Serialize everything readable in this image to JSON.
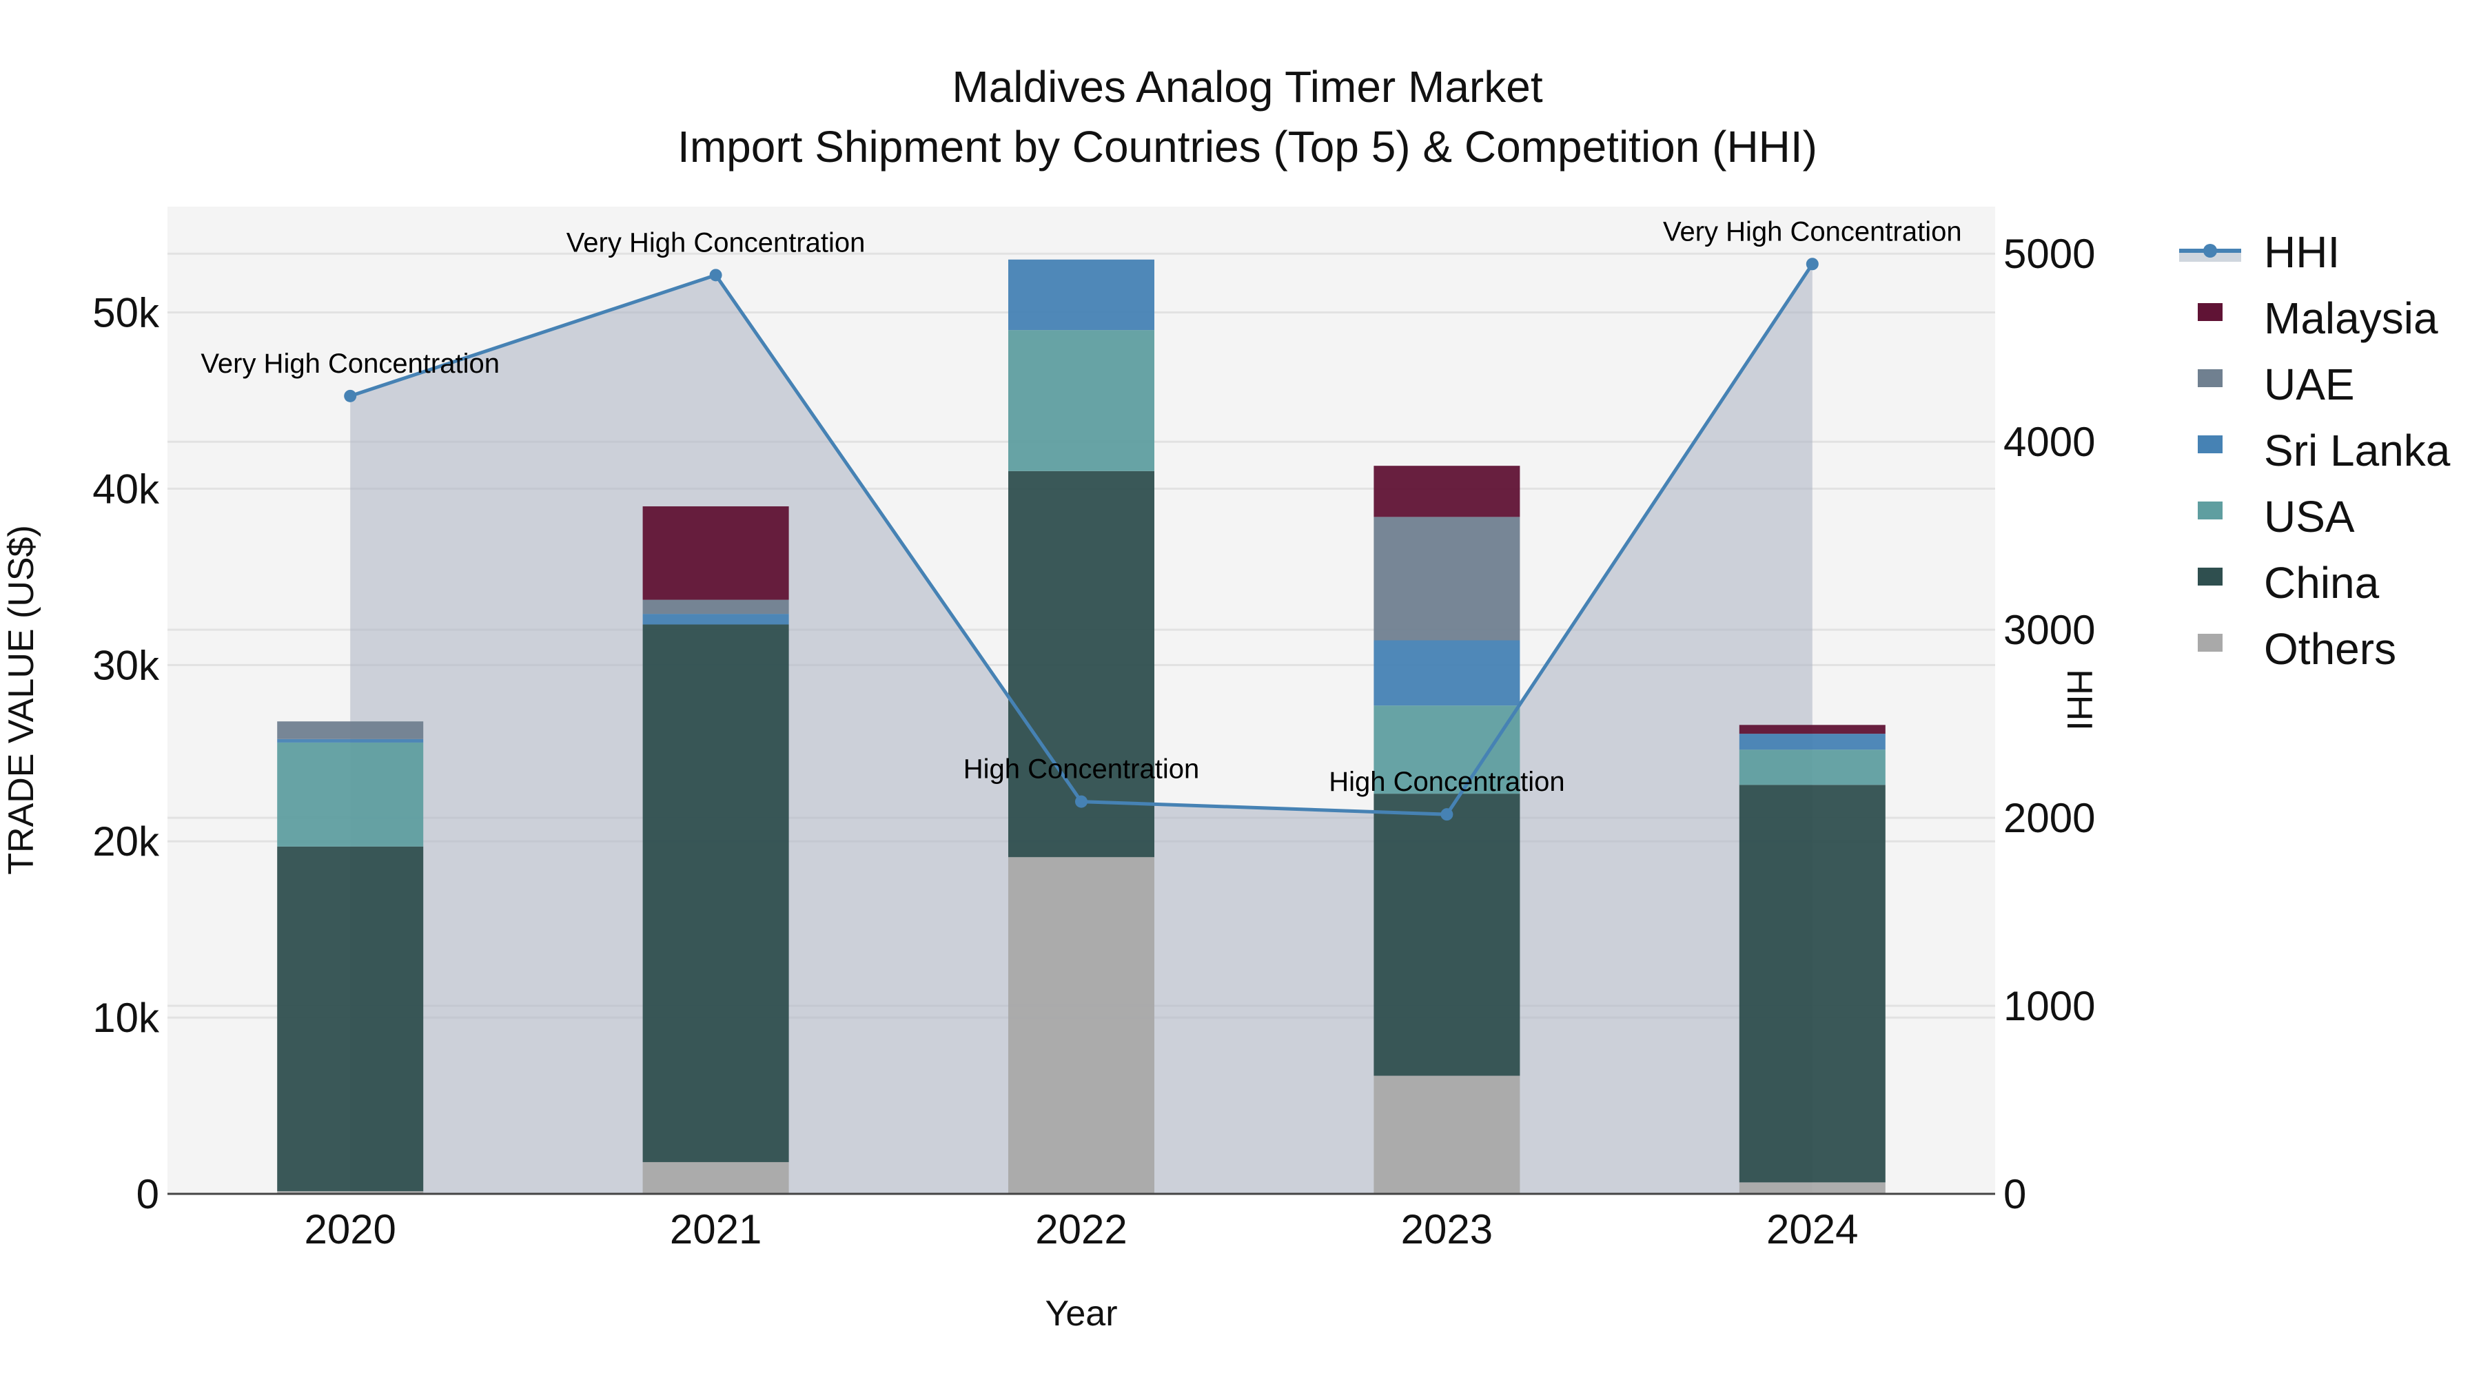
{
  "chart_data": {
    "type": "bar",
    "stacked": true,
    "title": "Maldives Analog Timer Market",
    "subtitle": "Import Shipment by Countries (Top 5) & Competition (HHI)",
    "xlabel": "Year",
    "ylabel": "TRADE VALUE (US$)",
    "y2label": "HHI",
    "categories": [
      "2020",
      "2021",
      "2022",
      "2023",
      "2024"
    ],
    "ylim": [
      0,
      56000
    ],
    "y2lim": [
      0,
      5250
    ],
    "yticks": [
      0,
      10000,
      20000,
      30000,
      40000,
      50000
    ],
    "ytick_labels": [
      "0",
      "10k",
      "20k",
      "30k",
      "40k",
      "50k"
    ],
    "y2ticks": [
      0,
      1000,
      2000,
      3000,
      4000,
      5000
    ],
    "y2tick_labels": [
      "0",
      "1000",
      "2000",
      "3000",
      "4000",
      "5000"
    ],
    "grid": true,
    "legend_position": "right",
    "series": [
      {
        "name": "Others",
        "color": "#a9a9a9",
        "values": [
          150,
          1800,
          19100,
          6700,
          650
        ]
      },
      {
        "name": "China",
        "color": "#2f4f4f",
        "values": [
          19550,
          30500,
          21900,
          16000,
          22550
        ]
      },
      {
        "name": "USA",
        "color": "#5f9ea0",
        "values": [
          5900,
          0,
          8000,
          5000,
          2000
        ]
      },
      {
        "name": "Sri Lanka",
        "color": "#4682b4",
        "values": [
          200,
          600,
          4000,
          3700,
          900
        ]
      },
      {
        "name": "UAE",
        "color": "#708090",
        "values": [
          1000,
          800,
          0,
          7000,
          0
        ]
      },
      {
        "name": "Malaysia",
        "color": "#601335",
        "values": [
          0,
          5300,
          0,
          2900,
          500
        ]
      }
    ],
    "line_series": {
      "name": "HHI",
      "axis": "y2",
      "color": "#4682b4",
      "fill_color": "rgba(176,184,196,0.6)",
      "values": [
        4243,
        4886,
        2086,
        2018,
        4945
      ],
      "annotations": [
        "Very High Concentration",
        "Very High Concentration",
        "High Concentration",
        "High Concentration",
        "Very High Concentration"
      ]
    }
  },
  "legend": {
    "items": [
      {
        "label": "HHI",
        "kind": "line",
        "color": "#4682b4"
      },
      {
        "label": "Malaysia",
        "kind": "box",
        "color": "#601335"
      },
      {
        "label": "UAE",
        "kind": "box",
        "color": "#708090"
      },
      {
        "label": "Sri Lanka",
        "kind": "box",
        "color": "#4682b4"
      },
      {
        "label": "USA",
        "kind": "box",
        "color": "#5f9ea0"
      },
      {
        "label": "China",
        "kind": "box",
        "color": "#2f4f4f"
      },
      {
        "label": "Others",
        "kind": "box",
        "color": "#a9a9a9"
      }
    ]
  }
}
